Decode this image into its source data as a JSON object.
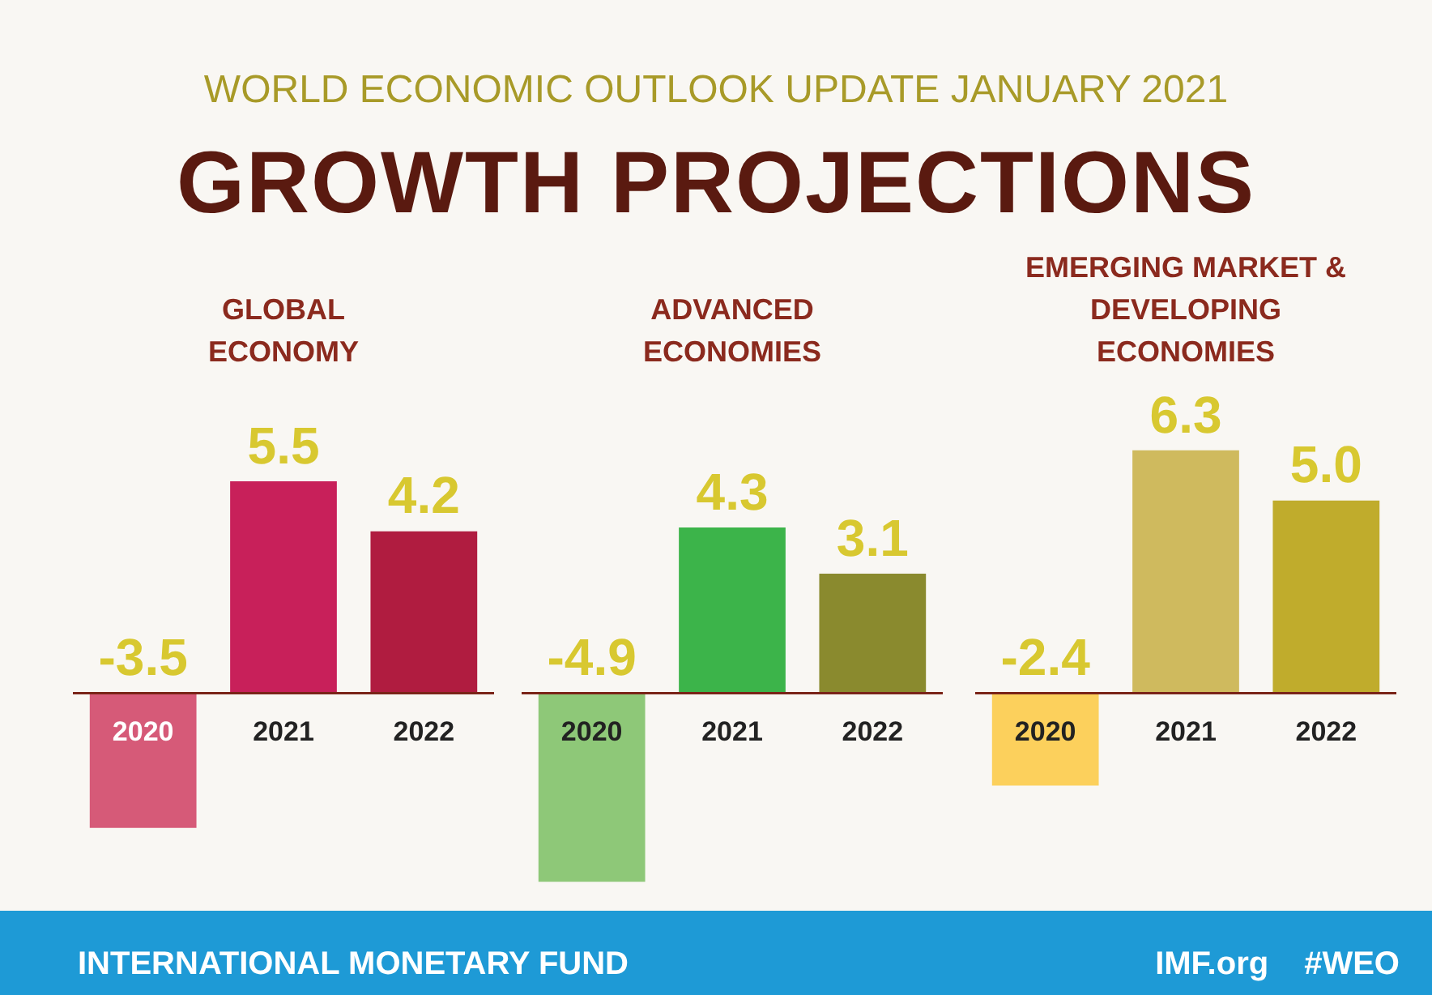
{
  "chart_data": [
    {
      "type": "other",
      "subtitle": "WORLD ECONOMIC OUTLOOK UPDATE JANUARY 2021",
      "title": "GROWTH PROJECTIONS",
      "annotations": [
        "INTERNATIONAL MONETARY FUND",
        "IMF.org",
        "#WEO"
      ]
    },
    {
      "type": "bar",
      "title": "GLOBAL ECONOMY",
      "categories": [
        "2020",
        "2021",
        "2022"
      ],
      "values": [
        -3.5,
        5.5,
        4.2
      ],
      "colors": [
        "#d65a78",
        "#c8205a",
        "#b01c40"
      ],
      "data_labels": true
    },
    {
      "type": "bar",
      "title": "ADVANCED ECONOMIES",
      "categories": [
        "2020",
        "2021",
        "2022"
      ],
      "values": [
        -4.9,
        4.3,
        3.1
      ],
      "colors": [
        "#8ec878",
        "#3cb44a",
        "#8a8a2e"
      ],
      "data_labels": true
    },
    {
      "type": "bar",
      "title": "EMERGING MARKET & DEVELOPING ECONOMIES",
      "categories": [
        "2020",
        "2021",
        "2022"
      ],
      "values": [
        -2.4,
        6.3,
        5.0
      ],
      "value_labels": [
        "-2.4",
        "6.3",
        "5.0"
      ],
      "colors": [
        "#fcd05c",
        "#cfba5e",
        "#c0ac2c"
      ]
    }
  ]
}
